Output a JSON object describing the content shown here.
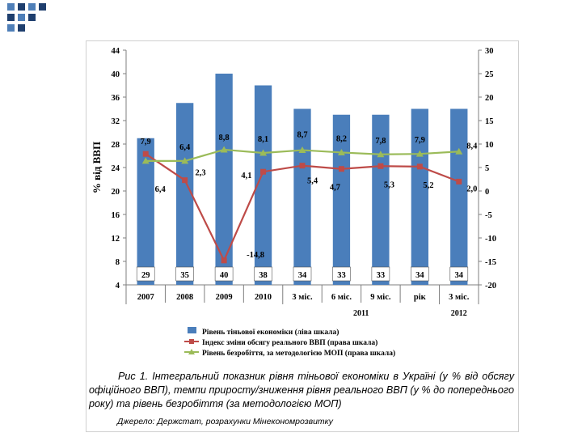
{
  "chart_data": {
    "type": "bar",
    "categories": [
      "2007",
      "2008",
      "2009",
      "2010",
      "3 міс.",
      "6 міс.",
      "9 міс.",
      "рік",
      "3 міс."
    ],
    "period_groups": [
      {
        "label": "2011",
        "from": 4,
        "to": 7
      },
      {
        "label": "2012",
        "from": 8,
        "to": 8
      }
    ],
    "ylabel": "% від ВВП",
    "y_left": {
      "min": 4,
      "max": 44,
      "ticks": [
        4,
        8,
        12,
        16,
        20,
        24,
        28,
        32,
        36,
        40,
        44
      ]
    },
    "y_right": {
      "min": -20,
      "max": 30,
      "ticks": [
        -20,
        -15,
        -10,
        -5,
        0,
        5,
        10,
        15,
        20,
        25,
        30
      ]
    },
    "series": [
      {
        "name": "Рівень тіньової економіки (ліва шкала)",
        "kind": "bar",
        "axis": "left",
        "color": "#4a7ebb",
        "values": [
          29,
          35,
          40,
          38,
          34,
          33,
          33,
          34,
          34
        ],
        "labels": [
          "29",
          "35",
          "40",
          "38",
          "34",
          "33",
          "33",
          "34",
          "34"
        ]
      },
      {
        "name": "Індекс зміни обсягу реального ВВП (права шкала)",
        "kind": "line",
        "axis": "right",
        "color": "#be4b48",
        "values": [
          7.9,
          2.3,
          -14.8,
          4.1,
          5.4,
          4.7,
          5.3,
          5.2,
          2.0
        ],
        "labels": [
          "7,9",
          "2,3",
          "-14,8",
          "4,1",
          "5,4",
          "4,7",
          "5,3",
          "5,2",
          "2,0"
        ]
      },
      {
        "name": "Рівень безробіття, за методологією МОП (права шкала)",
        "kind": "line",
        "axis": "right",
        "color": "#9bbb59",
        "values": [
          6.4,
          6.4,
          8.8,
          8.1,
          8.7,
          8.2,
          7.8,
          7.9,
          8.4
        ],
        "labels": [
          "6,4",
          "6,4",
          "8,8",
          "8,1",
          "8,7",
          "8,2",
          "7,8",
          "7,9",
          "8,4"
        ]
      }
    ]
  },
  "caption": {
    "text": "Рис 1. Інтегральний показник рівня тіньової економіки в Україні (у % від обсягу офіційного ВВП), темпи приросту/зниження рівня реального ВВП (у % до попереднього року) та рівень безробіття (за методологією МОП)",
    "source": "Джерело: Держстат, розрахунки Мінекономрозвитку"
  },
  "colors": {
    "accent_dark": "#1f3f6e",
    "accent_light": "#4f7fb8"
  }
}
